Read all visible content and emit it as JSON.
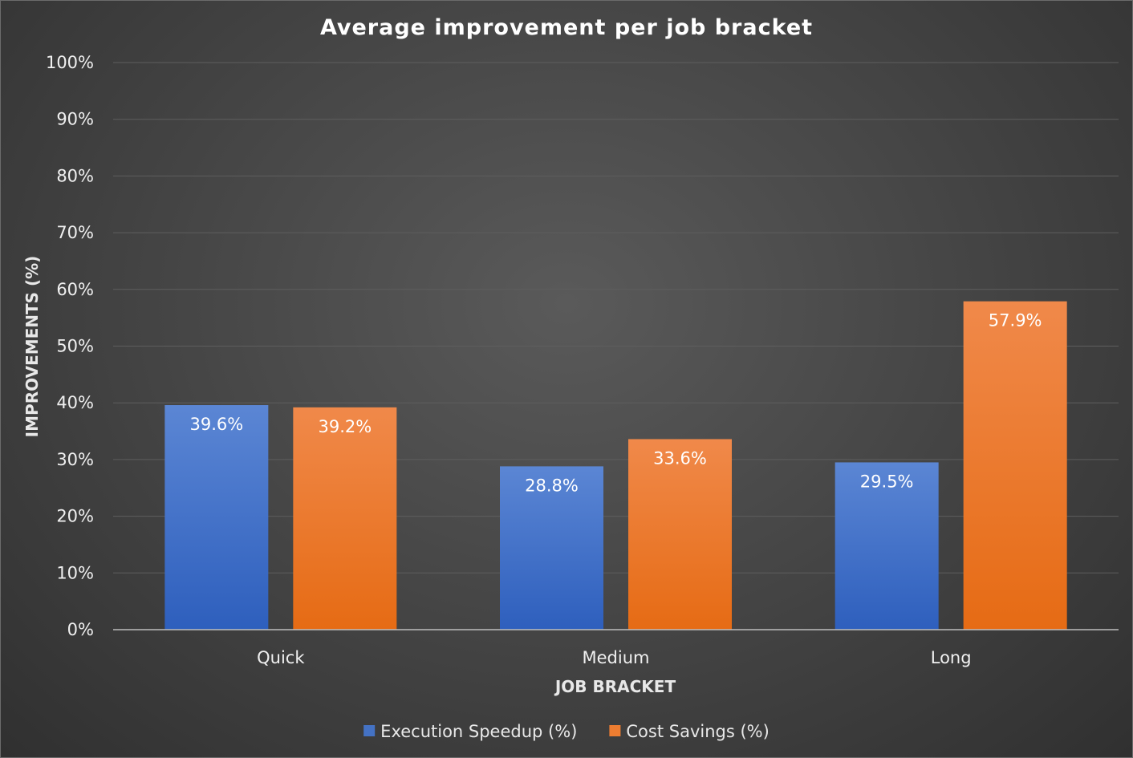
{
  "chart_data": {
    "type": "bar",
    "title": "Average improvement per job bracket",
    "xlabel": "JOB BRACKET",
    "ylabel": "IMPROVEMENTS (%)",
    "categories": [
      "Quick",
      "Medium",
      "Long"
    ],
    "series": [
      {
        "name": "Execution Speedup (%)",
        "values": [
          39.6,
          28.8,
          29.5
        ],
        "labels": [
          "39.6%",
          "28.8%",
          "29.5%"
        ],
        "color": "#4472c4"
      },
      {
        "name": "Cost Savings (%)",
        "values": [
          39.2,
          33.6,
          57.9
        ],
        "labels": [
          "39.2%",
          "33.6%",
          "57.9%"
        ],
        "color": "#ed7d31"
      }
    ],
    "ylim": [
      0,
      100
    ],
    "yticks": [
      0,
      10,
      20,
      30,
      40,
      50,
      60,
      70,
      80,
      90,
      100
    ],
    "ytick_labels": [
      "0%",
      "10%",
      "20%",
      "30%",
      "40%",
      "50%",
      "60%",
      "70%",
      "80%",
      "90%",
      "100%"
    ],
    "grid": true,
    "legend_position": "bottom"
  }
}
